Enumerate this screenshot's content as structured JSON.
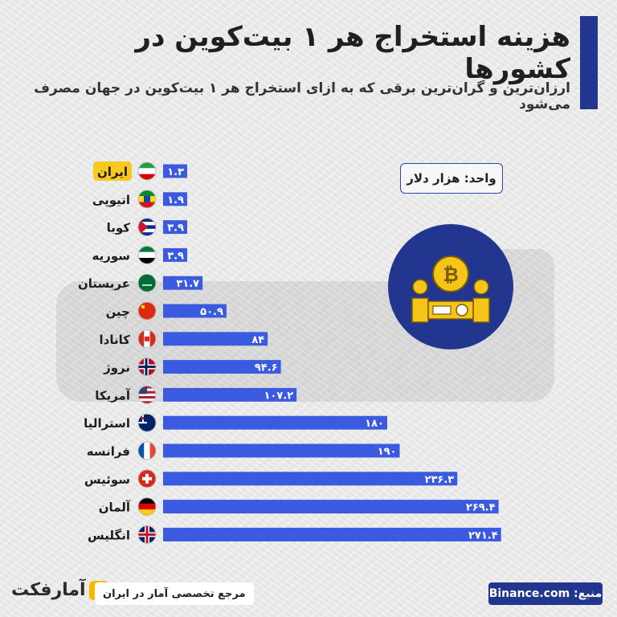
{
  "header": {
    "title": "هزینه استخراج هر ۱ بیت‌کوین در کشورها",
    "subtitle": "ارزان‌ترین و گران‌ترین برقی که به ازای استخراج هر ۱ بیت‌کوین در جهان مصرف می‌شود"
  },
  "unit_label": "واحد: هزار دلار",
  "chart_data": {
    "type": "bar",
    "orientation": "horizontal",
    "categories": [
      "ایران",
      "اتیوپی",
      "کوبا",
      "سوریه",
      "عربستان",
      "چین",
      "کانادا",
      "نروژ",
      "آمریکا",
      "استرالیا",
      "فرانسه",
      "سوئیس",
      "آلمان",
      "انگلیس"
    ],
    "values": [
      1.3,
      1.9,
      3.9,
      3.9,
      31.7,
      50.9,
      84,
      94.6,
      107.2,
      180,
      190,
      236.3,
      269.4,
      271.4
    ],
    "value_labels": [
      "۱.۳",
      "۱.۹",
      "۳.۹",
      "۳.۹",
      "۳۱.۷",
      "۵۰.۹",
      "۸۴",
      "۹۴.۶",
      "۱۰۷.۲",
      "۱۸۰",
      "۱۹۰",
      "۲۳۶.۳",
      "۲۶۹.۴",
      "۲۷۱.۴"
    ],
    "flags": [
      "iran-flag-icon",
      "ethiopia-flag-icon",
      "cuba-flag-icon",
      "syria-flag-icon",
      "saudi-flag-icon",
      "china-flag-icon",
      "canada-flag-icon",
      "norway-flag-icon",
      "usa-flag-icon",
      "australia-flag-icon",
      "france-flag-icon",
      "switzerland-flag-icon",
      "germany-flag-icon",
      "uk-flag-icon"
    ],
    "highlight_category": "ایران",
    "bar_color": "#3a5be0",
    "highlight_color": "#f7c81e",
    "xlim": [
      0,
      280
    ]
  },
  "footer": {
    "tagline": "مرجع تخصصی آمار در ایران",
    "brand": "آمارفکت",
    "source": "منبع: Binance.com"
  },
  "icons": {
    "center": "bitcoin-mining-icon"
  }
}
